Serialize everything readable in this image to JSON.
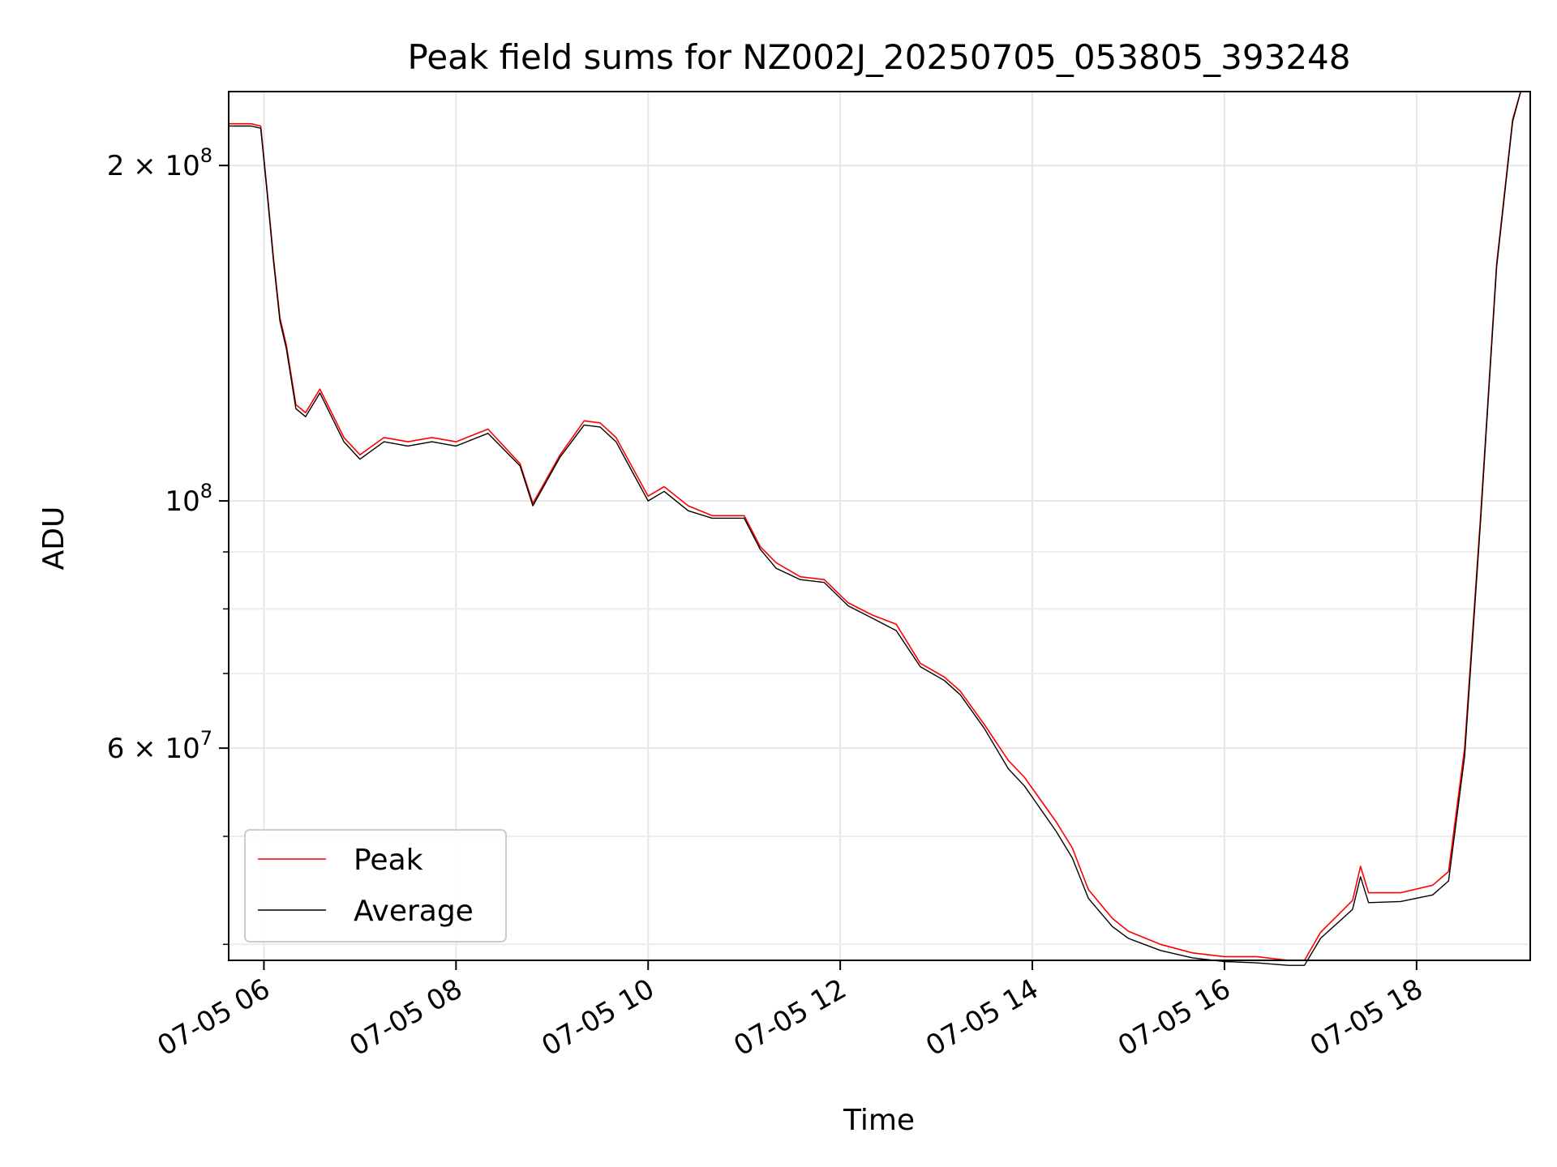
{
  "chart_data": {
    "type": "line",
    "title": "Peak field sums for NZ002J_20250705_053805_393248",
    "xlabel": "Time",
    "ylabel": "ADU",
    "yscale": "log",
    "ylim": [
      38700000,
      233000000
    ],
    "xlim": [
      "2025-07-05 05:38",
      "2025-07-05 19:11"
    ],
    "grid": true,
    "legend_position": "lower-left",
    "x_ticks": [
      {
        "value": "2025-07-05 06:00",
        "label": "07-05 06"
      },
      {
        "value": "2025-07-05 08:00",
        "label": "07-05 08"
      },
      {
        "value": "2025-07-05 10:00",
        "label": "07-05 10"
      },
      {
        "value": "2025-07-05 12:00",
        "label": "07-05 12"
      },
      {
        "value": "2025-07-05 14:00",
        "label": "07-05 14"
      },
      {
        "value": "2025-07-05 16:00",
        "label": "07-05 16"
      },
      {
        "value": "2025-07-05 18:00",
        "label": "07-05 18"
      }
    ],
    "y_major_ticks": [
      {
        "value": 100000000,
        "base": "10",
        "exp": "8"
      },
      {
        "value": 200000000,
        "base": "2 × 10",
        "exp": "8"
      },
      {
        "value": 60000000,
        "base": "6 × 10",
        "exp": "7"
      }
    ],
    "y_minor_ticks": [
      40000000,
      50000000,
      70000000,
      80000000,
      90000000
    ],
    "series": [
      {
        "name": "Peak",
        "color": "#ff0000",
        "x": [
          "2025-07-05 05:38",
          "2025-07-05 05:52",
          "2025-07-05 05:58",
          "2025-07-05 06:02",
          "2025-07-05 06:06",
          "2025-07-05 06:10",
          "2025-07-05 06:14",
          "2025-07-05 06:20",
          "2025-07-05 06:26",
          "2025-07-05 06:35",
          "2025-07-05 06:50",
          "2025-07-05 07:00",
          "2025-07-05 07:15",
          "2025-07-05 07:30",
          "2025-07-05 07:45",
          "2025-07-05 08:00",
          "2025-07-05 08:20",
          "2025-07-05 08:40",
          "2025-07-05 08:48",
          "2025-07-05 09:05",
          "2025-07-05 09:20",
          "2025-07-05 09:30",
          "2025-07-05 09:40",
          "2025-07-05 09:52",
          "2025-07-05 10:00",
          "2025-07-05 10:10",
          "2025-07-05 10:25",
          "2025-07-05 10:40",
          "2025-07-05 11:00",
          "2025-07-05 11:10",
          "2025-07-05 11:20",
          "2025-07-05 11:35",
          "2025-07-05 11:50",
          "2025-07-05 12:05",
          "2025-07-05 12:20",
          "2025-07-05 12:35",
          "2025-07-05 12:50",
          "2025-07-05 13:05",
          "2025-07-05 13:15",
          "2025-07-05 13:30",
          "2025-07-05 13:45",
          "2025-07-05 13:55",
          "2025-07-05 14:15",
          "2025-07-05 14:25",
          "2025-07-05 14:35",
          "2025-07-05 14:50",
          "2025-07-05 15:00",
          "2025-07-05 15:20",
          "2025-07-05 15:40",
          "2025-07-05 16:00",
          "2025-07-05 16:20",
          "2025-07-05 16:40",
          "2025-07-05 16:50",
          "2025-07-05 17:00",
          "2025-07-05 17:20",
          "2025-07-05 17:25",
          "2025-07-05 17:30",
          "2025-07-05 17:50",
          "2025-07-05 18:10",
          "2025-07-05 18:20",
          "2025-07-05 18:30",
          "2025-07-05 18:40",
          "2025-07-05 18:50",
          "2025-07-05 19:00",
          "2025-07-05 19:05"
        ],
        "y": [
          218000000,
          218000000,
          217000000,
          190000000,
          165000000,
          146000000,
          138000000,
          122000000,
          120000000,
          126000000,
          114000000,
          110000000,
          114000000,
          113000000,
          114000000,
          113000000,
          116000000,
          108000000,
          99500000,
          110000000,
          118000000,
          117500000,
          114000000,
          106000000,
          101000000,
          103000000,
          99000000,
          97000000,
          97000000,
          91000000,
          88000000,
          85500000,
          85000000,
          81000000,
          79000000,
          77500000,
          71500000,
          69500000,
          67500000,
          63000000,
          58500000,
          56500000,
          51500000,
          48800000,
          44800000,
          42200000,
          41100000,
          40000000,
          39300000,
          39000000,
          39000000,
          38700000,
          38700000,
          41000000,
          43800000,
          47000000,
          44500000,
          44500000,
          45200000,
          46500000,
          60000000,
          97000000,
          163000000,
          220000000,
          233000000
        ]
      },
      {
        "name": "Average",
        "color": "#000000",
        "x": [
          "2025-07-05 05:38",
          "2025-07-05 05:52",
          "2025-07-05 05:58",
          "2025-07-05 06:02",
          "2025-07-05 06:06",
          "2025-07-05 06:10",
          "2025-07-05 06:14",
          "2025-07-05 06:20",
          "2025-07-05 06:26",
          "2025-07-05 06:35",
          "2025-07-05 06:50",
          "2025-07-05 07:00",
          "2025-07-05 07:15",
          "2025-07-05 07:30",
          "2025-07-05 07:45",
          "2025-07-05 08:00",
          "2025-07-05 08:20",
          "2025-07-05 08:40",
          "2025-07-05 08:48",
          "2025-07-05 09:05",
          "2025-07-05 09:20",
          "2025-07-05 09:30",
          "2025-07-05 09:40",
          "2025-07-05 09:52",
          "2025-07-05 10:00",
          "2025-07-05 10:10",
          "2025-07-05 10:25",
          "2025-07-05 10:40",
          "2025-07-05 11:00",
          "2025-07-05 11:10",
          "2025-07-05 11:20",
          "2025-07-05 11:35",
          "2025-07-05 11:50",
          "2025-07-05 12:05",
          "2025-07-05 12:20",
          "2025-07-05 12:35",
          "2025-07-05 12:50",
          "2025-07-05 13:05",
          "2025-07-05 13:15",
          "2025-07-05 13:30",
          "2025-07-05 13:45",
          "2025-07-05 13:55",
          "2025-07-05 14:15",
          "2025-07-05 14:25",
          "2025-07-05 14:35",
          "2025-07-05 14:50",
          "2025-07-05 15:00",
          "2025-07-05 15:20",
          "2025-07-05 15:40",
          "2025-07-05 16:00",
          "2025-07-05 16:20",
          "2025-07-05 16:40",
          "2025-07-05 16:50",
          "2025-07-05 17:00",
          "2025-07-05 17:20",
          "2025-07-05 17:25",
          "2025-07-05 17:30",
          "2025-07-05 17:50",
          "2025-07-05 18:10",
          "2025-07-05 18:20",
          "2025-07-05 18:30",
          "2025-07-05 18:40",
          "2025-07-05 18:50",
          "2025-07-05 19:00",
          "2025-07-05 19:05"
        ],
        "y": [
          217000000,
          217000000,
          216000000,
          189000000,
          164000000,
          145000000,
          137000000,
          121000000,
          119000000,
          125000000,
          113000000,
          109000000,
          113000000,
          112000000,
          113000000,
          112000000,
          115000000,
          107500000,
          99000000,
          109500000,
          117000000,
          116500000,
          113000000,
          105000000,
          100000000,
          102000000,
          98000000,
          96500000,
          96500000,
          90500000,
          87000000,
          85000000,
          84500000,
          80500000,
          78500000,
          76500000,
          71000000,
          69000000,
          67000000,
          62500000,
          57500000,
          55500000,
          50500000,
          47800000,
          44000000,
          41500000,
          40500000,
          39500000,
          38900000,
          38600000,
          38500000,
          38300000,
          38300000,
          40500000,
          43000000,
          46000000,
          43600000,
          43700000,
          44300000,
          45600000,
          59000000,
          96000000,
          162000000,
          219000000,
          233000000
        ]
      }
    ]
  }
}
